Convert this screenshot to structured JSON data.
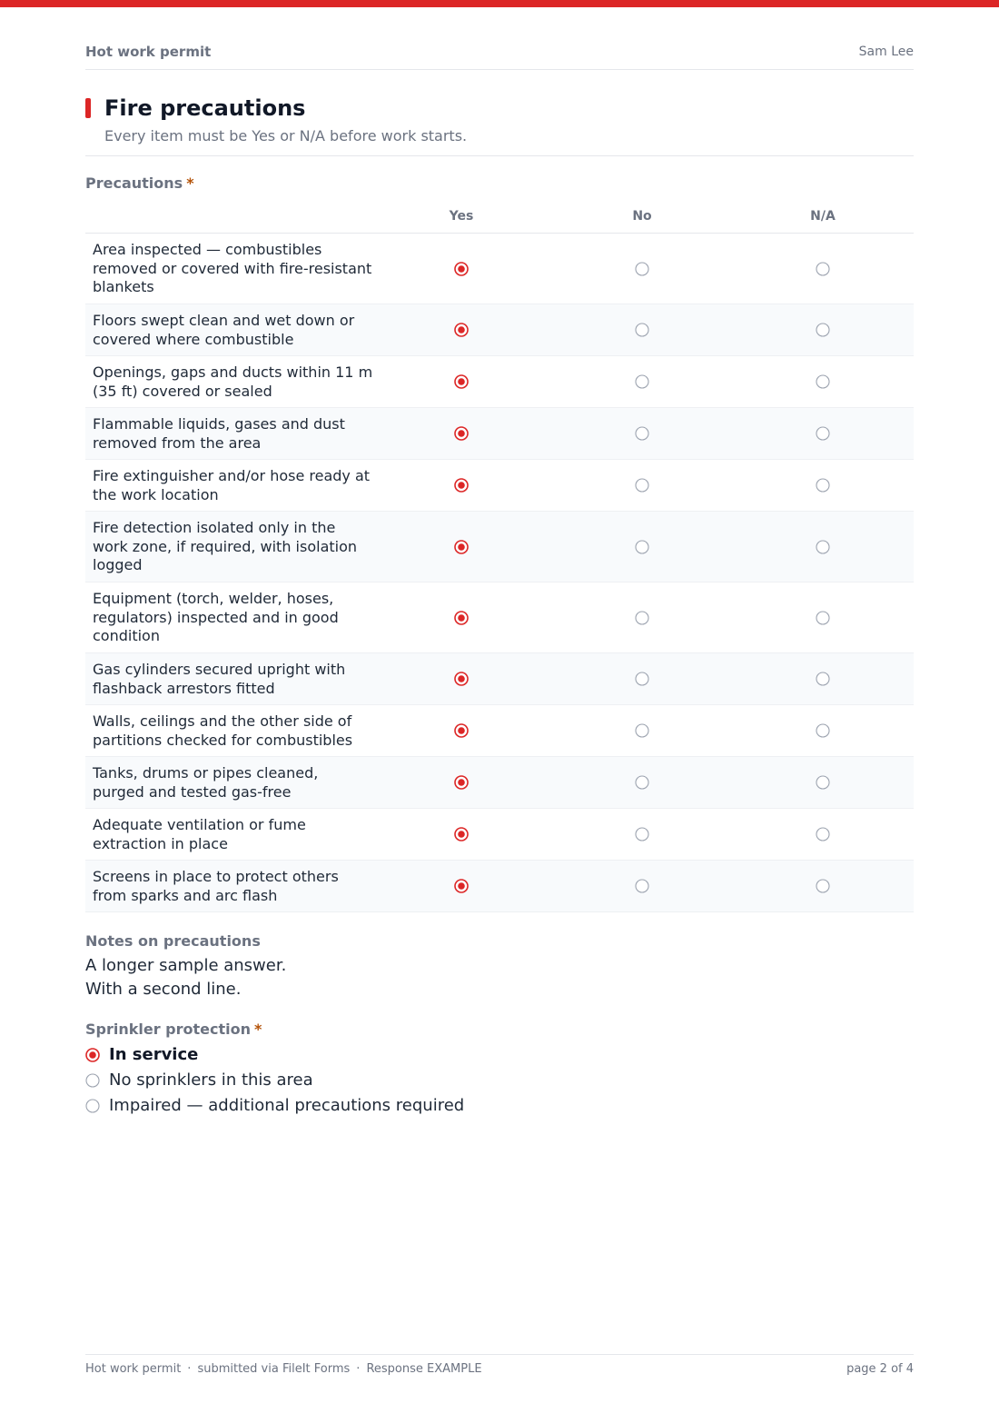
{
  "header": {
    "form_name": "Hot work permit",
    "user_name": "Sam Lee"
  },
  "section": {
    "title": "Fire precautions",
    "subtitle": "Every item must be Yes or N/A before work starts."
  },
  "precautions": {
    "label": "Precautions",
    "required_mark": "*",
    "columns": [
      "Yes",
      "No",
      "N/A"
    ],
    "rows": [
      {
        "question": "Area inspected — combustibles removed or covered with fire-resistant blankets",
        "answer": "Yes"
      },
      {
        "question": "Floors swept clean and wet down or covered where combustible",
        "answer": "Yes"
      },
      {
        "question": "Openings, gaps and ducts within 11 m (35 ft) covered or sealed",
        "answer": "Yes"
      },
      {
        "question": "Flammable liquids, gases and dust removed from the area",
        "answer": "Yes"
      },
      {
        "question": "Fire extinguisher and/or hose ready at the work location",
        "answer": "Yes"
      },
      {
        "question": "Fire detection isolated only in the work zone, if required, with isolation logged",
        "answer": "Yes"
      },
      {
        "question": "Equipment (torch, welder, hoses, regulators) inspected and in good condition",
        "answer": "Yes"
      },
      {
        "question": "Gas cylinders secured upright with flashback arrestors fitted",
        "answer": "Yes"
      },
      {
        "question": "Walls, ceilings and the other side of partitions checked for combustibles",
        "answer": "Yes"
      },
      {
        "question": "Tanks, drums or pipes cleaned, purged and tested gas-free",
        "answer": "Yes"
      },
      {
        "question": "Adequate ventilation or fume extraction in place",
        "answer": "Yes"
      },
      {
        "question": "Screens in place to protect others from sparks and arc flash",
        "answer": "Yes"
      }
    ]
  },
  "notes": {
    "label": "Notes on precautions",
    "value": "A longer sample answer.\nWith a second line."
  },
  "sprinkler": {
    "label": "Sprinkler protection",
    "required_mark": "*",
    "options": [
      {
        "label": "In service",
        "selected": true
      },
      {
        "label": "No sprinklers in this area",
        "selected": false
      },
      {
        "label": "Impaired — additional precautions required",
        "selected": false
      }
    ]
  },
  "footer": {
    "parts": [
      "Hot work permit",
      "submitted via FileIt Forms",
      "Response EXAMPLE"
    ],
    "separator": "·",
    "page": "page 2 of 4"
  },
  "colors": {
    "accent": "#dc2626",
    "radio_outline": "#9ca3af"
  }
}
